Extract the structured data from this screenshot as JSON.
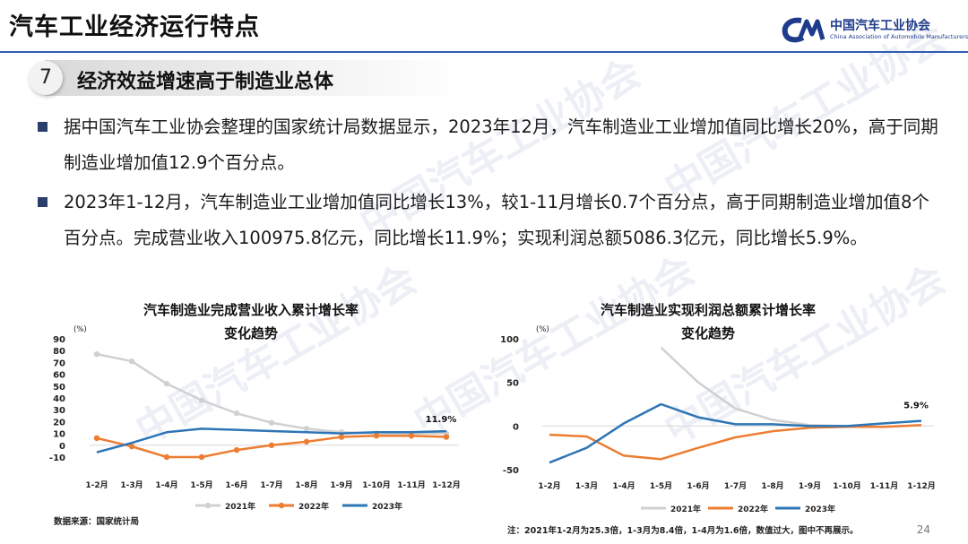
{
  "header": {
    "title": "汽车工业经济运行特点",
    "logo_cn": "中国汽车工业协会",
    "logo_en": "China Association of Automobile Manufacturers"
  },
  "section": {
    "number": "7",
    "title": "经济效益增速高于制造业总体"
  },
  "bullets": [
    "据中国汽车工业协会整理的国家统计局数据显示，2023年12月，汽车制造业工业增加值同比增长20%，高于同期制造业增加值12.9个百分点。",
    "2023年1-12月，汽车制造业工业增加值同比增长13%，较1-11月增长0.7个百分点，高于同期制造业增加值8个百分点。完成营业收入100975.8亿元，同比增长11.9%；实现利润总额5086.3亿元，同比增长5.9%。"
  ],
  "watermark": "中国汽车工业协会",
  "colors": {
    "y2021": "#d0d0d0",
    "y2022": "#ed7d31",
    "y2023": "#2e75b6",
    "accent": "#2d5dae"
  },
  "chart_data": [
    {
      "type": "line",
      "title": "汽车制造业完成营业收入累计增长率变化趋势",
      "title_line1": "汽车制造业完成营业收入累计增长率",
      "title_line2": "变化趋势",
      "unit": "(%)",
      "categories": [
        "1-2月",
        "1-3月",
        "1-4月",
        "1-5月",
        "1-6月",
        "1-7月",
        "1-8月",
        "1-9月",
        "1-10月",
        "1-11月",
        "1-12月"
      ],
      "yticks": [
        -10,
        0,
        10,
        20,
        30,
        40,
        50,
        60,
        70,
        80,
        90
      ],
      "ylim": [
        -10,
        90
      ],
      "series": [
        {
          "name": "2021年",
          "values": [
            77,
            71,
            52,
            38,
            27,
            19,
            14,
            11,
            10,
            10,
            10
          ],
          "markers": true
        },
        {
          "name": "2022年",
          "values": [
            6,
            -1,
            -10,
            -10,
            -4,
            0,
            3,
            7,
            8,
            8,
            7
          ],
          "markers": true
        },
        {
          "name": "2023年",
          "values": [
            -6,
            2,
            11,
            14,
            13,
            12,
            11,
            10,
            11,
            11,
            11.9
          ],
          "markers": false
        }
      ],
      "annotation": "11.9%",
      "source": "数据来源：国家统计局"
    },
    {
      "type": "line",
      "title": "汽车制造业实现利润总额累计增长率变化趋势",
      "title_line1": "汽车制造业实现利润总额累计增长率",
      "title_line2": "变化趋势",
      "unit": "(%)",
      "categories": [
        "1-2月",
        "1-3月",
        "1-4月",
        "1-5月",
        "1-6月",
        "1-7月",
        "1-8月",
        "1-9月",
        "1-10月",
        "1-11月",
        "1-12月"
      ],
      "yticks": [
        -50,
        0,
        50,
        100
      ],
      "ylim": [
        -50,
        100
      ],
      "series": [
        {
          "name": "2021年",
          "values": [
            null,
            null,
            null,
            90,
            50,
            20,
            7,
            1,
            0,
            -1,
            1
          ]
        },
        {
          "name": "2022年",
          "values": [
            -10,
            -12,
            -34,
            -38,
            -25,
            -13,
            -6,
            -2,
            -1,
            -1,
            1
          ]
        },
        {
          "name": "2023年",
          "values": [
            -42,
            -25,
            3,
            25,
            10,
            2,
            2,
            0,
            0,
            3,
            5.9
          ]
        }
      ],
      "annotation": "5.9%",
      "note": "注：2021年1-2月为25.3倍，1-3月为8.4倍，1-4月为1.6倍，数值过大，图中不再展示。"
    }
  ],
  "page_number": "24"
}
